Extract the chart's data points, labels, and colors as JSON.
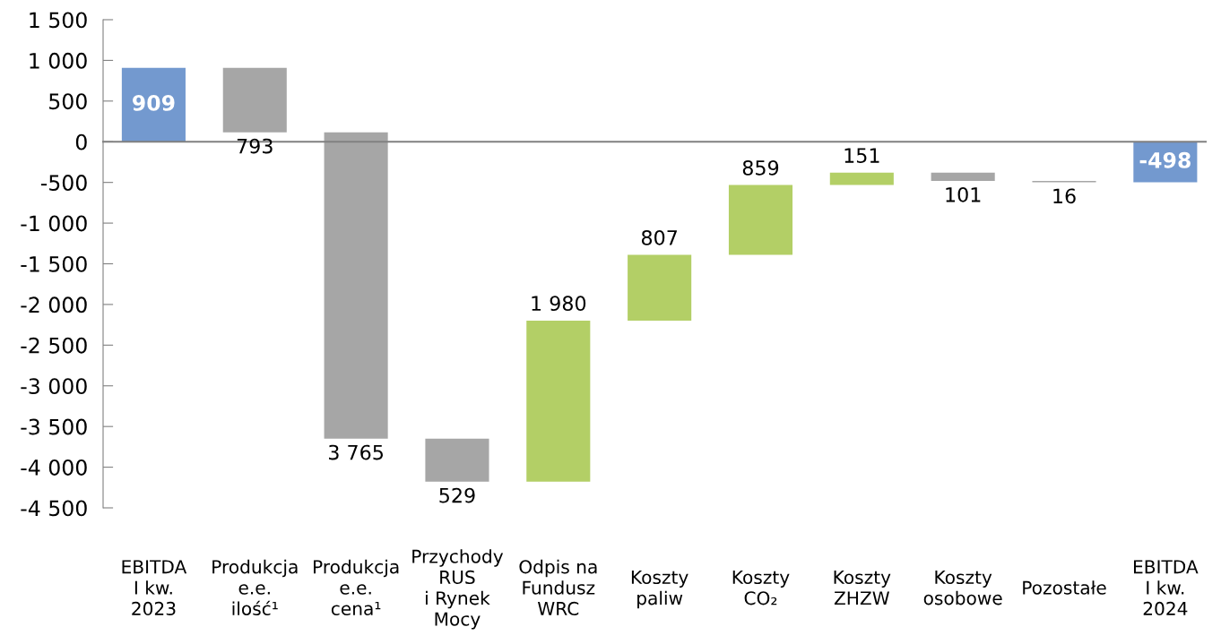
{
  "chart_data": {
    "type": "bar",
    "categories": [
      "EBITDA\nI kw.\n2023",
      "Produkcja\ne.e.\nilość¹",
      "Produkcja\ne.e.\ncena¹",
      "Przychody\nRUS\ni Rynek\nMocy",
      "Odpis na\nFundusz\nWRC",
      "Koszty\npaliw",
      "Koszty\nCO₂",
      "Koszty\nZHZW",
      "Koszty\nosobowe",
      "Pozostałe",
      "EBITDA\nI kw.\n2024"
    ],
    "base": [
      0,
      909,
      116,
      -3649,
      -4178,
      -2198,
      -1391,
      -532,
      -381,
      -482,
      0
    ],
    "values": [
      909,
      -793,
      -3765,
      -529,
      1980,
      807,
      859,
      151,
      -101,
      -16,
      -498
    ],
    "value_labels": [
      "909",
      "793",
      "3 765",
      "529",
      "1 980",
      "807",
      "859",
      "151",
      "101",
      "16",
      "-498"
    ],
    "colors": [
      "#7399cf",
      "#a6a6a6",
      "#a6a6a6",
      "#a6a6a6",
      "#b3cf66",
      "#b3cf66",
      "#b3cf66",
      "#b3cf66",
      "#a6a6a6",
      "#a6a6a6",
      "#7399cf"
    ],
    "ylim": [
      -4500,
      1500
    ],
    "yticks": [
      {
        "value": -4500,
        "label": "-4 500"
      },
      {
        "value": -4000,
        "label": "-4 000"
      },
      {
        "value": -3500,
        "label": "-3 500"
      },
      {
        "value": -3000,
        "label": "-3 000"
      },
      {
        "value": -2500,
        "label": "-2 500"
      },
      {
        "value": -2000,
        "label": "-2 000"
      },
      {
        "value": -1500,
        "label": "-1 500"
      },
      {
        "value": -1000,
        "label": "-1 000"
      },
      -500,
      0,
      500,
      {
        "value": 1000,
        "label": "1 000"
      },
      {
        "value": 1500,
        "label": "1 500"
      }
    ],
    "legend": false
  }
}
